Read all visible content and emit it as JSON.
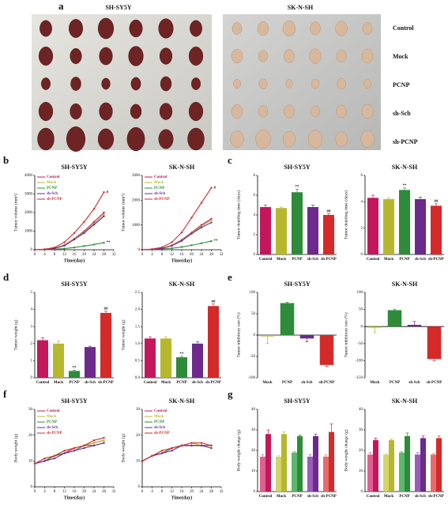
{
  "panel_labels": [
    "a",
    "b",
    "c",
    "d",
    "e",
    "f",
    "g"
  ],
  "photo_panel": {
    "titles": [
      "SH-SY5Y",
      "SK-N-SH"
    ],
    "rows": [
      "Control",
      "Mock",
      "PCNP",
      "sh-Scb",
      "sh-PCNP"
    ]
  },
  "chart_data": [
    {
      "type": "line",
      "title": "SH-SY5Y",
      "x_label": "Time(day)",
      "y_label": "Tumor volume (mm³)",
      "xlim": [
        0,
        32
      ],
      "xticks": [
        0,
        4,
        8,
        12,
        16,
        20,
        24,
        28,
        32
      ],
      "ylim": [
        0,
        4000
      ],
      "yticks": [
        0,
        1000,
        2000,
        3000,
        4000
      ],
      "legend": "upper left",
      "x": [
        0,
        4,
        8,
        12,
        16,
        20,
        24,
        28
      ],
      "series": [
        {
          "name": "Control",
          "color": "#c2185b",
          "values": [
            0,
            20,
            80,
            250,
            600,
            1000,
            1500,
            2000
          ]
        },
        {
          "name": "Mock",
          "color": "#b7b72e",
          "values": [
            0,
            20,
            80,
            240,
            580,
            950,
            1400,
            1900
          ]
        },
        {
          "name": "PCNP",
          "color": "#2e8b3a",
          "values": [
            0,
            10,
            30,
            60,
            120,
            200,
            280,
            380
          ],
          "end_label": "**"
        },
        {
          "name": "sh-Scb",
          "color": "#6b2a8c",
          "values": [
            0,
            20,
            70,
            220,
            550,
            900,
            1350,
            1800
          ]
        },
        {
          "name": "sh-PCNP",
          "color": "#d42a2a",
          "values": [
            0,
            30,
            120,
            400,
            900,
            1500,
            2200,
            3100
          ],
          "end_label": "#"
        }
      ]
    },
    {
      "type": "line",
      "title": "SK-N-SH",
      "x_label": "Time(day)",
      "y_label": "Tumor volume (mm³)",
      "xlim": [
        0,
        32
      ],
      "xticks": [
        0,
        4,
        8,
        12,
        16,
        20,
        24,
        28,
        32
      ],
      "ylim": [
        0,
        3000
      ],
      "yticks": [
        0,
        1000,
        2000,
        3000
      ],
      "legend": "upper left",
      "x": [
        0,
        4,
        8,
        12,
        16,
        20,
        24,
        28
      ],
      "series": [
        {
          "name": "Control",
          "color": "#c2185b",
          "values": [
            0,
            15,
            60,
            180,
            400,
            700,
            1000,
            1250
          ]
        },
        {
          "name": "Mock",
          "color": "#b7b72e",
          "values": [
            0,
            15,
            60,
            170,
            380,
            680,
            950,
            1200
          ]
        },
        {
          "name": "PCNP",
          "color": "#2e8b3a",
          "values": [
            0,
            10,
            30,
            60,
            110,
            180,
            260,
            350
          ],
          "end_label": "**"
        },
        {
          "name": "sh-Scb",
          "color": "#6b2a8c",
          "values": [
            0,
            15,
            55,
            160,
            360,
            650,
            900,
            1100
          ]
        },
        {
          "name": "sh-PCNP",
          "color": "#d42a2a",
          "values": [
            0,
            25,
            100,
            300,
            700,
            1300,
            1900,
            2500
          ],
          "end_label": "#"
        }
      ]
    },
    {
      "type": "bar",
      "title": "SH-SY5Y",
      "y_label": "Tumor doubling time (days)",
      "ylim": [
        0,
        8
      ],
      "yticks": [
        0,
        2,
        4,
        6,
        8
      ],
      "categories": [
        "Control",
        "Mock",
        "PCNP",
        "sh-Scb",
        "sh-PCNP"
      ],
      "values": [
        4.8,
        4.7,
        6.3,
        4.8,
        4.0
      ],
      "errors": [
        0.2,
        0.1,
        0.3,
        0.2,
        0.15
      ],
      "colors": [
        "#c2185b",
        "#b7b72e",
        "#2e8b3a",
        "#6b2a8c",
        "#d42a2a"
      ],
      "annotations": [
        null,
        null,
        "**",
        null,
        "##"
      ]
    },
    {
      "type": "bar",
      "title": "SK-N-SH",
      "y_label": "Tumor doubling time (days)",
      "ylim": [
        0,
        6
      ],
      "yticks": [
        0,
        2,
        4,
        6
      ],
      "categories": [
        "Control",
        "Mock",
        "PCNP",
        "sh-Scb",
        "sh-PCNP"
      ],
      "values": [
        4.3,
        4.2,
        4.9,
        4.2,
        3.7
      ],
      "errors": [
        0.2,
        0.1,
        0.15,
        0.15,
        0.15
      ],
      "colors": [
        "#c2185b",
        "#b7b72e",
        "#2e8b3a",
        "#6b2a8c",
        "#d42a2a"
      ],
      "annotations": [
        null,
        null,
        "**",
        null,
        "##"
      ]
    },
    {
      "type": "bar",
      "title": "SH-SY5Y",
      "y_label": "Tumor weight (g)",
      "ylim": [
        0,
        5
      ],
      "yticks": [
        0,
        1,
        2,
        3,
        4,
        5
      ],
      "categories": [
        "Control",
        "Mock",
        "PCNP",
        "sh-Scb",
        "sh-PCNP"
      ],
      "values": [
        2.2,
        2.0,
        0.4,
        1.8,
        3.8
      ],
      "errors": [
        0.15,
        0.15,
        0.05,
        0.05,
        0.1
      ],
      "colors": [
        "#c2185b",
        "#b7b72e",
        "#2e8b3a",
        "#6b2a8c",
        "#d42a2a"
      ],
      "annotations": [
        null,
        null,
        "**",
        null,
        "##"
      ]
    },
    {
      "type": "bar",
      "title": "SK-N-SH",
      "y_label": "Tumor weight (g)",
      "ylim": [
        0,
        2.5
      ],
      "yticks": [
        {
          "value": 0,
          "label": "0.0"
        },
        {
          "value": 0.5,
          "label": "0.5"
        },
        {
          "value": 1,
          "label": "1.0"
        },
        {
          "value": 1.5,
          "label": "1.5"
        },
        {
          "value": 2,
          "label": "2.0"
        },
        {
          "value": 2.5,
          "label": "2.5"
        }
      ],
      "categories": [
        "Control",
        "Mock",
        "PCNP",
        "sh-Scb",
        "sh-PCNP"
      ],
      "values": [
        1.15,
        1.15,
        0.6,
        1.0,
        2.1
      ],
      "errors": [
        0.05,
        0.05,
        0.03,
        0.06,
        0.06
      ],
      "colors": [
        "#c2185b",
        "#b7b72e",
        "#2e8b3a",
        "#6b2a8c",
        "#d42a2a"
      ],
      "annotations": [
        null,
        null,
        "**",
        null,
        "##"
      ]
    },
    {
      "type": "bar",
      "title": "SH-SY5Y",
      "y_label": "Tumor inhibitory rate (%)",
      "ylim": [
        -100,
        100
      ],
      "yticks": [
        -100,
        -50,
        0,
        50,
        100
      ],
      "categories": [
        "Mock",
        "PCNP",
        "sh-Scb",
        "sh-PCNP"
      ],
      "values": [
        -3,
        75,
        -8,
        -70
      ],
      "errors": [
        17,
        2,
        8,
        3
      ],
      "colors": [
        "#b7b72e",
        "#2e8b3a",
        "#6b2a8c",
        "#d42a2a"
      ]
    },
    {
      "type": "bar",
      "title": "SK-N-SH",
      "y_label": "Tumor inhibitory rate (%)",
      "ylim": [
        -150,
        100
      ],
      "yticks": [
        -150,
        -100,
        -50,
        0,
        50,
        100
      ],
      "categories": [
        "Mock",
        "PCNP",
        "sh-Scb",
        "sh-PCNP"
      ],
      "values": [
        -3,
        48,
        5,
        -95
      ],
      "errors": [
        15,
        3,
        10,
        5
      ],
      "colors": [
        "#b7b72e",
        "#2e8b3a",
        "#6b2a8c",
        "#d42a2a"
      ]
    },
    {
      "type": "line",
      "title": "SH-SY5Y",
      "x_label": "Time(day)",
      "y_label": "Body weight (g)",
      "xlim": [
        0,
        32
      ],
      "xticks": [
        0,
        4,
        8,
        12,
        16,
        20,
        24,
        28,
        32
      ],
      "ylim": [
        0,
        30
      ],
      "yticks": [
        0,
        10,
        20,
        30
      ],
      "legend": "upper left",
      "x": [
        0,
        4,
        8,
        12,
        16,
        20,
        24,
        28
      ],
      "series": [
        {
          "name": "Control",
          "color": "#c2185b",
          "values": [
            9,
            10,
            12,
            13,
            15,
            16,
            17,
            18
          ]
        },
        {
          "name": "Mock",
          "color": "#b7b72e",
          "values": [
            9,
            10,
            12,
            14,
            15,
            16,
            17,
            18
          ]
        },
        {
          "name": "PCNP",
          "color": "#2e8b3a",
          "values": [
            9,
            10,
            12,
            13,
            14,
            16,
            16,
            17
          ]
        },
        {
          "name": "sh-Scb",
          "color": "#6b2a8c",
          "values": [
            9,
            10,
            11,
            13,
            14,
            15,
            16,
            17
          ]
        },
        {
          "name": "sh-PCNP",
          "color": "#d42a2a",
          "values": [
            9,
            11,
            12,
            14,
            15,
            16,
            18,
            19
          ]
        }
      ]
    },
    {
      "type": "line",
      "title": "SK-N-SH",
      "x_label": "Time(day)",
      "y_label": "Body weight (g)",
      "xlim": [
        0,
        32
      ],
      "xticks": [
        0,
        4,
        8,
        12,
        16,
        20,
        24,
        28,
        32
      ],
      "ylim": [
        0,
        30
      ],
      "yticks": [
        0,
        10,
        20,
        30
      ],
      "legend": "upper left",
      "x": [
        0,
        4,
        8,
        12,
        16,
        20,
        24,
        28
      ],
      "series": [
        {
          "name": "Control",
          "color": "#c2185b",
          "values": [
            10,
            12,
            13,
            15,
            16,
            16,
            16,
            16
          ]
        },
        {
          "name": "Mock",
          "color": "#b7b72e",
          "values": [
            10,
            12,
            14,
            15,
            16,
            17,
            16,
            16
          ]
        },
        {
          "name": "PCNP",
          "color": "#2e8b3a",
          "values": [
            10,
            12,
            13,
            15,
            16,
            16,
            16,
            16
          ]
        },
        {
          "name": "sh-Scb",
          "color": "#6b2a8c",
          "values": [
            10,
            12,
            13,
            14,
            16,
            16,
            16,
            15
          ]
        },
        {
          "name": "sh-PCNP",
          "color": "#d42a2a",
          "values": [
            10,
            12,
            14,
            15,
            16,
            17,
            17,
            16
          ]
        }
      ]
    },
    {
      "type": "grouped_bar",
      "title": "SH-SY5Y",
      "y_label": "Body weight change (g)",
      "ylim": [
        0,
        40
      ],
      "yticks": [
        0,
        10,
        20,
        30,
        40
      ],
      "categories": [
        "Control",
        "Mock",
        "PCNP",
        "sh-Scb",
        "sh-PCNP"
      ],
      "series": [
        {
          "colors": [
            "#e0608f",
            "#d4d46a",
            "#5cb86a",
            "#9a5cb8",
            "#e86a6a"
          ],
          "values": [
            17,
            17,
            19,
            17,
            17
          ],
          "errors": [
            1,
            0.5,
            0.5,
            1,
            1
          ]
        },
        {
          "colors": [
            "#c2185b",
            "#b7b72e",
            "#2e8b3a",
            "#6b2a8c",
            "#d42a2a"
          ],
          "values": [
            28,
            28,
            27,
            27,
            29
          ],
          "errors": [
            2,
            1,
            0.5,
            1,
            4
          ]
        }
      ]
    },
    {
      "type": "grouped_bar",
      "title": "SK-N-SH",
      "y_label": "Body weight change (g)",
      "ylim": [
        0,
        40
      ],
      "yticks": [
        0,
        10,
        20,
        30,
        40
      ],
      "categories": [
        "Control",
        "Mock",
        "PCNP",
        "sh-Scb",
        "sh-PCNP"
      ],
      "series": [
        {
          "colors": [
            "#e0608f",
            "#d4d46a",
            "#5cb86a",
            "#9a5cb8",
            "#e86a6a"
          ],
          "values": [
            18,
            18,
            19,
            18,
            18
          ],
          "errors": [
            1,
            0.5,
            0.5,
            1,
            0.5
          ]
        },
        {
          "colors": [
            "#c2185b",
            "#b7b72e",
            "#2e8b3a",
            "#6b2a8c",
            "#d42a2a"
          ],
          "values": [
            25,
            25,
            27,
            26,
            26
          ],
          "errors": [
            1,
            0.5,
            1.5,
            1,
            1
          ]
        }
      ]
    }
  ]
}
